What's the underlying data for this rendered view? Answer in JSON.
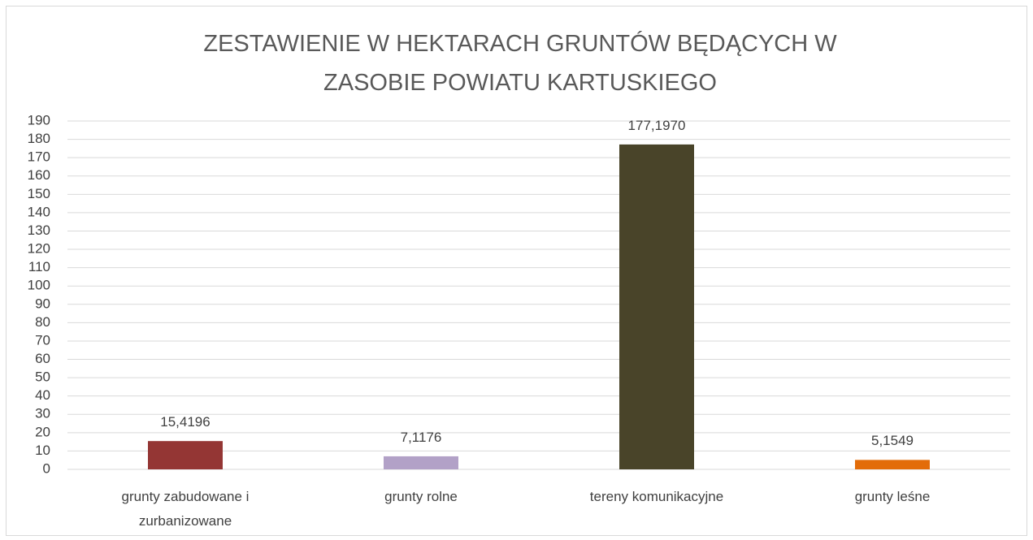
{
  "chart_data": {
    "type": "bar",
    "title": "ZESTAWIENIE W HEKTARACH GRUNTÓW BĘDĄCYCH W ZASOBIE POWIATU KARTUSKIEGO",
    "categories": [
      "grunty zabudowane i zurbanizowane",
      "grunty rolne",
      "tereny komunikacyjne",
      "grunty leśne"
    ],
    "values": [
      15.4196,
      7.1176,
      177.197,
      5.1549
    ],
    "value_labels": [
      "15,4196",
      "7,1176",
      "177,1970",
      "5,1549"
    ],
    "colors": [
      "#943634",
      "#b2a1c7",
      "#494429",
      "#e36c09"
    ],
    "ylim": [
      0,
      190
    ],
    "yticks": [
      0,
      10,
      20,
      30,
      40,
      50,
      60,
      70,
      80,
      90,
      100,
      110,
      120,
      130,
      140,
      150,
      160,
      170,
      180,
      190
    ],
    "grid": true
  }
}
